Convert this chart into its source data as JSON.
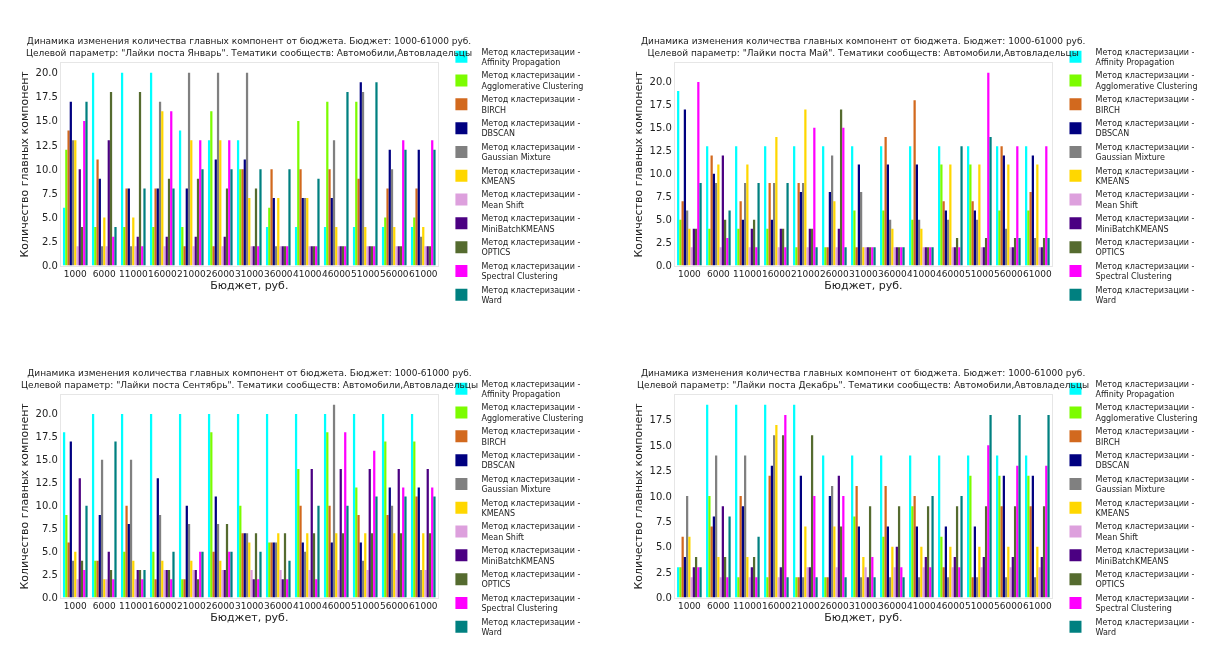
{
  "chart_data": [
    {
      "type": "bar",
      "title": "Динамика изменения количества главных компонент от бюджета. Бюджет: 1000-61000 руб.\nЦелевой параметр: \"Лайки поста Январь\". Тематики сообществ: Автомобили,Автовладельцы",
      "xlabel": "Бюджет, руб.",
      "ylabel": "Количество главных компонент",
      "legend": "right",
      "categories": [
        "1000",
        "6000",
        "11000",
        "16000",
        "21000",
        "26000",
        "31000",
        "36000",
        "41000",
        "46000",
        "51000",
        "56000",
        "61000"
      ],
      "ylim": [
        0,
        21
      ],
      "yticks": [
        {
          "value": 0,
          "label": "0.0"
        },
        {
          "value": 2.5,
          "label": "2.5"
        },
        {
          "value": 5,
          "label": "5.0"
        },
        {
          "value": 7.5,
          "label": "7.5"
        },
        {
          "value": 10,
          "label": "10.0"
        },
        {
          "value": 12.5,
          "label": "12.5"
        },
        {
          "value": 15,
          "label": "15.0"
        },
        {
          "value": 17.5,
          "label": "17.5"
        },
        {
          "value": 20,
          "label": "20.0"
        }
      ],
      "series": [
        {
          "name": "Метод кластеризации - Affinity Propagation",
          "color": "#00ffff",
          "values": [
            6,
            20,
            20,
            20,
            14,
            13,
            13,
            4,
            4,
            4,
            4,
            4,
            4
          ]
        },
        {
          "name": "Метод кластеризации - Agglomerative Clustering",
          "color": "#7cfc00",
          "values": [
            12,
            4,
            4,
            4,
            4,
            16,
            10,
            6,
            15,
            17,
            17,
            5,
            5
          ]
        },
        {
          "name": "Метод кластеризации - BIRCH",
          "color": "#d2691e",
          "values": [
            14,
            11,
            8,
            8,
            2,
            2,
            10,
            10,
            10,
            10,
            9,
            8,
            8
          ]
        },
        {
          "name": "Метод кластеризации - DBSCAN",
          "color": "#000080",
          "values": [
            17,
            9,
            8,
            8,
            8,
            11,
            11,
            7,
            7,
            7,
            19,
            12,
            12
          ]
        },
        {
          "name": "Метод кластеризации - Gaussian Mixture",
          "color": "#808080",
          "values": [
            13,
            2,
            2,
            17,
            20,
            20,
            20,
            2,
            7,
            13,
            18,
            10,
            3
          ]
        },
        {
          "name": "Метод кластеризации - KMEANS",
          "color": "#ffd700",
          "values": [
            13,
            5,
            5,
            16,
            13,
            13,
            7,
            7,
            7,
            4,
            4,
            4,
            4
          ]
        },
        {
          "name": "Метод кластеризации - Mean Shift",
          "color": "#dda0dd",
          "values": [
            2,
            2,
            2,
            2,
            2,
            2,
            2,
            2,
            2,
            2,
            2,
            2,
            2
          ]
        },
        {
          "name": "Метод кластеризации - MiniBatchKMEANS",
          "color": "#4b0082",
          "values": [
            10,
            13,
            3,
            3,
            3,
            3,
            2,
            2,
            2,
            2,
            2,
            2,
            2
          ]
        },
        {
          "name": "Метод кластеризации - OPTICS",
          "color": "#556b2f",
          "values": [
            4,
            18,
            18,
            9,
            9,
            8,
            8,
            2,
            2,
            2,
            2,
            2,
            2
          ]
        },
        {
          "name": "Метод кластеризации - Spectral Clustering",
          "color": "#ff00ff",
          "values": [
            15,
            3,
            2,
            16,
            13,
            13,
            2,
            2,
            2,
            2,
            2,
            13,
            13
          ]
        },
        {
          "name": "Метод кластеризации - Ward",
          "color": "#008080",
          "values": [
            17,
            4,
            8,
            8,
            10,
            10,
            10,
            10,
            9,
            18,
            19,
            12,
            12
          ]
        }
      ]
    },
    {
      "type": "bar",
      "title": "Динамика изменения количества главных компонент от бюджета. Бюджет: 1000-61000 руб.\nЦелевой параметр: \"Лайки поста Май\". Тематики сообществ: Автомобили,Автовладельцы",
      "xlabel": "Бюджет, руб.",
      "ylabel": "Количество главных компонент",
      "legend": "right",
      "categories": [
        "1000",
        "6000",
        "11000",
        "16000",
        "21000",
        "26000",
        "31000",
        "36000",
        "41000",
        "46000",
        "51000",
        "56000",
        "61000"
      ],
      "ylim": [
        0,
        22.05
      ],
      "yticks": [
        {
          "value": 0,
          "label": "0.0"
        },
        {
          "value": 2.5,
          "label": "2.5"
        },
        {
          "value": 5,
          "label": "5.0"
        },
        {
          "value": 7.5,
          "label": "7.5"
        },
        {
          "value": 10,
          "label": "10.0"
        },
        {
          "value": 12.5,
          "label": "12.5"
        },
        {
          "value": 15,
          "label": "15.0"
        },
        {
          "value": 17.5,
          "label": "17.5"
        },
        {
          "value": 20,
          "label": "20.0"
        }
      ],
      "series": [
        {
          "name": "Метод кластеризации - Affinity Propagation",
          "color": "#00ffff",
          "values": [
            19,
            13,
            13,
            13,
            13,
            13,
            13,
            13,
            13,
            13,
            13,
            13,
            13
          ]
        },
        {
          "name": "Метод кластеризации - Agglomerative Clustering",
          "color": "#7cfc00",
          "values": [
            5,
            4,
            4,
            4,
            2,
            2,
            6,
            6,
            5,
            11,
            11,
            6,
            6
          ]
        },
        {
          "name": "Метод кластеризации - BIRCH",
          "color": "#d2691e",
          "values": [
            7,
            12,
            7,
            9,
            9,
            2,
            2,
            14,
            18,
            7,
            7,
            13,
            8
          ]
        },
        {
          "name": "Метод кластеризации - DBSCAN",
          "color": "#000080",
          "values": [
            17,
            10,
            5,
            5,
            8,
            8,
            11,
            11,
            11,
            6,
            6,
            12,
            12
          ]
        },
        {
          "name": "Метод кластеризации - Gaussian Mixture",
          "color": "#808080",
          "values": [
            6,
            9,
            9,
            9,
            9,
            12,
            8,
            5,
            5,
            5,
            5,
            4,
            3
          ]
        },
        {
          "name": "Метод кластеризации - KMEANS",
          "color": "#ffd700",
          "values": [
            4,
            11,
            11,
            14,
            17,
            7,
            2,
            4,
            4,
            11,
            11,
            11,
            11
          ]
        },
        {
          "name": "Метод кластеризации - Mean Shift",
          "color": "#dda0dd",
          "values": [
            2,
            2,
            2,
            2,
            2,
            2,
            2,
            2,
            2,
            2,
            2,
            2,
            2
          ]
        },
        {
          "name": "Метод кластеризации - MiniBatchKMEANS",
          "color": "#4b0082",
          "values": [
            4,
            12,
            4,
            4,
            4,
            4,
            2,
            2,
            2,
            2,
            2,
            2,
            2
          ]
        },
        {
          "name": "Метод кластеризации - OPTICS",
          "color": "#556b2f",
          "values": [
            4,
            5,
            5,
            4,
            4,
            17,
            2,
            2,
            2,
            3,
            3,
            3,
            3
          ]
        },
        {
          "name": "Метод кластеризации - Spectral Clustering",
          "color": "#ff00ff",
          "values": [
            20,
            3,
            2,
            2,
            15,
            15,
            2,
            2,
            2,
            2,
            21,
            13,
            13
          ]
        },
        {
          "name": "Метод кластеризации - Ward",
          "color": "#008080",
          "values": [
            9,
            6,
            9,
            9,
            2,
            2,
            2,
            2,
            2,
            13,
            14,
            3,
            3
          ]
        }
      ]
    },
    {
      "type": "bar",
      "title": "Динамика изменения количества главных компонент от бюджета. Бюджет: 1000-61000 руб.\nЦелевой параметр: \"Лайки поста Сентябрь\". Тематики сообществ: Автомобили,Автовладельцы",
      "xlabel": "Бюджет, руб.",
      "ylabel": "Количество главных компонент",
      "legend": "right",
      "categories": [
        "1000",
        "6000",
        "11000",
        "16000",
        "21000",
        "26000",
        "31000",
        "36000",
        "41000",
        "46000",
        "51000",
        "56000",
        "61000"
      ],
      "ylim": [
        0,
        22.05
      ],
      "yticks": [
        {
          "value": 0,
          "label": "0.0"
        },
        {
          "value": 2.5,
          "label": "2.5"
        },
        {
          "value": 5,
          "label": "5.0"
        },
        {
          "value": 7.5,
          "label": "7.5"
        },
        {
          "value": 10,
          "label": "10.0"
        },
        {
          "value": 12.5,
          "label": "12.5"
        },
        {
          "value": 15,
          "label": "15.0"
        },
        {
          "value": 17.5,
          "label": "17.5"
        },
        {
          "value": 20,
          "label": "20.0"
        }
      ],
      "series": [
        {
          "name": "Метод кластеризации - Affinity Propagation",
          "color": "#00ffff",
          "values": [
            18,
            20,
            20,
            20,
            20,
            20,
            20,
            20,
            20,
            20,
            20,
            20,
            20
          ]
        },
        {
          "name": "Метод кластеризации - Agglomerative Clustering",
          "color": "#7cfc00",
          "values": [
            9,
            4,
            5,
            5,
            2,
            18,
            10,
            6,
            14,
            18,
            12,
            17,
            17
          ]
        },
        {
          "name": "Метод кластеризации - BIRCH",
          "color": "#d2691e",
          "values": [
            6,
            4,
            10,
            2,
            2,
            5,
            7,
            6,
            10,
            10,
            9,
            9,
            11
          ]
        },
        {
          "name": "Метод кластеризации - DBSCAN",
          "color": "#000080",
          "values": [
            17,
            9,
            8,
            13,
            10,
            11,
            7,
            6,
            6,
            6,
            6,
            12,
            12
          ]
        },
        {
          "name": "Метод кластеризации - Gaussian Mixture",
          "color": "#808080",
          "values": [
            4,
            15,
            15,
            9,
            8,
            8,
            7,
            6,
            5,
            21,
            4,
            10,
            3
          ]
        },
        {
          "name": "Метод кластеризации - KMEANS",
          "color": "#ffd700",
          "values": [
            5,
            2,
            4,
            4,
            4,
            4,
            6,
            7,
            7,
            7,
            7,
            7,
            7
          ]
        },
        {
          "name": "Метод кластеризации - Mean Shift",
          "color": "#dda0dd",
          "values": [
            2,
            2,
            2,
            3,
            3,
            3,
            3,
            3,
            3,
            3,
            3,
            3,
            3
          ]
        },
        {
          "name": "Метод кластеризации - MiniBatchKMEANS",
          "color": "#4b0082",
          "values": [
            13,
            5,
            3,
            3,
            3,
            3,
            2,
            2,
            14,
            14,
            14,
            14,
            14
          ]
        },
        {
          "name": "Метод кластеризации - OPTICS",
          "color": "#556b2f",
          "values": [
            4,
            3,
            3,
            3,
            2,
            8,
            7,
            7,
            7,
            7,
            7,
            7,
            7
          ]
        },
        {
          "name": "Метод кластеризации - Spectral Clustering",
          "color": "#ff00ff",
          "values": [
            3,
            2,
            2,
            2,
            5,
            5,
            2,
            2,
            2,
            18,
            16,
            12,
            12
          ]
        },
        {
          "name": "Метод кластеризации - Ward",
          "color": "#008080",
          "values": [
            10,
            17,
            3,
            5,
            5,
            5,
            5,
            4,
            10,
            10,
            11,
            11,
            11
          ]
        }
      ]
    },
    {
      "type": "bar",
      "title": "Динамика изменения количества главных компонент от бюджета. Бюджет: 1000-61000 руб.\nЦелевой параметр: \"Лайки поста Декабрь\". Тематики сообществ: Автомобили,Автовладельцы",
      "xlabel": "Бюджет, руб.",
      "ylabel": "Количество главных компонент",
      "legend": "right",
      "categories": [
        "1000",
        "6000",
        "11000",
        "16000",
        "21000",
        "26000",
        "31000",
        "36000",
        "41000",
        "46000",
        "51000",
        "56000",
        "61000"
      ],
      "ylim": [
        0,
        19.95
      ],
      "yticks": [
        {
          "value": 0,
          "label": "0.0"
        },
        {
          "value": 2.5,
          "label": "2.5"
        },
        {
          "value": 5,
          "label": "5.0"
        },
        {
          "value": 7.5,
          "label": "7.5"
        },
        {
          "value": 10,
          "label": "10.0"
        },
        {
          "value": 12.5,
          "label": "12.5"
        },
        {
          "value": 15,
          "label": "15.0"
        },
        {
          "value": 17.5,
          "label": "17.5"
        }
      ],
      "series": [
        {
          "name": "Метод кластеризации - Affinity Propagation",
          "color": "#00ffff",
          "values": [
            3,
            19,
            19,
            19,
            19,
            14,
            14,
            14,
            14,
            14,
            14,
            14,
            14
          ]
        },
        {
          "name": "Метод кластеризации - Agglomerative Clustering",
          "color": "#7cfc00",
          "values": [
            3,
            10,
            2,
            2,
            2,
            2,
            8,
            6,
            9,
            6,
            12,
            12,
            12
          ]
        },
        {
          "name": "Метод кластеризации - BIRCH",
          "color": "#d2691e",
          "values": [
            6,
            7,
            10,
            12,
            2,
            2,
            11,
            11,
            10,
            3,
            2,
            9,
            9
          ]
        },
        {
          "name": "Метод кластеризации - DBSCAN",
          "color": "#000080",
          "values": [
            4,
            8,
            9,
            13,
            12,
            10,
            7,
            7,
            7,
            7,
            7,
            12,
            12
          ]
        },
        {
          "name": "Метод кластеризации - Gaussian Mixture",
          "color": "#808080",
          "values": [
            10,
            14,
            14,
            16,
            2,
            11,
            2,
            2,
            2,
            2,
            2,
            2,
            2
          ]
        },
        {
          "name": "Метод кластеризации - KMEANS",
          "color": "#ffd700",
          "values": [
            6,
            4,
            4,
            17,
            7,
            7,
            4,
            5,
            5,
            5,
            5,
            5,
            5
          ]
        },
        {
          "name": "Метод кластеризации - Mean Shift",
          "color": "#dda0dd",
          "values": [
            2,
            2,
            2,
            2,
            3,
            3,
            3,
            3,
            3,
            3,
            3,
            3,
            3
          ]
        },
        {
          "name": "Метод кластеризации - MiniBatchKMEANS",
          "color": "#4b0082",
          "values": [
            3,
            9,
            3,
            3,
            3,
            12,
            2,
            5,
            4,
            4,
            4,
            4,
            4
          ]
        },
        {
          "name": "Метод кластеризации - OPTICS",
          "color": "#556b2f",
          "values": [
            4,
            4,
            4,
            16,
            16,
            7,
            9,
            9,
            9,
            9,
            9,
            9,
            9
          ]
        },
        {
          "name": "Метод кластеризации - Spectral Clustering",
          "color": "#ff00ff",
          "values": [
            3,
            2,
            2,
            18,
            10,
            10,
            4,
            3,
            3,
            3,
            15,
            13,
            13
          ]
        },
        {
          "name": "Метод кластеризации - Ward",
          "color": "#008080",
          "values": [
            3,
            8,
            6,
            2,
            2,
            2,
            2,
            2,
            10,
            10,
            18,
            18,
            18
          ]
        }
      ]
    }
  ]
}
